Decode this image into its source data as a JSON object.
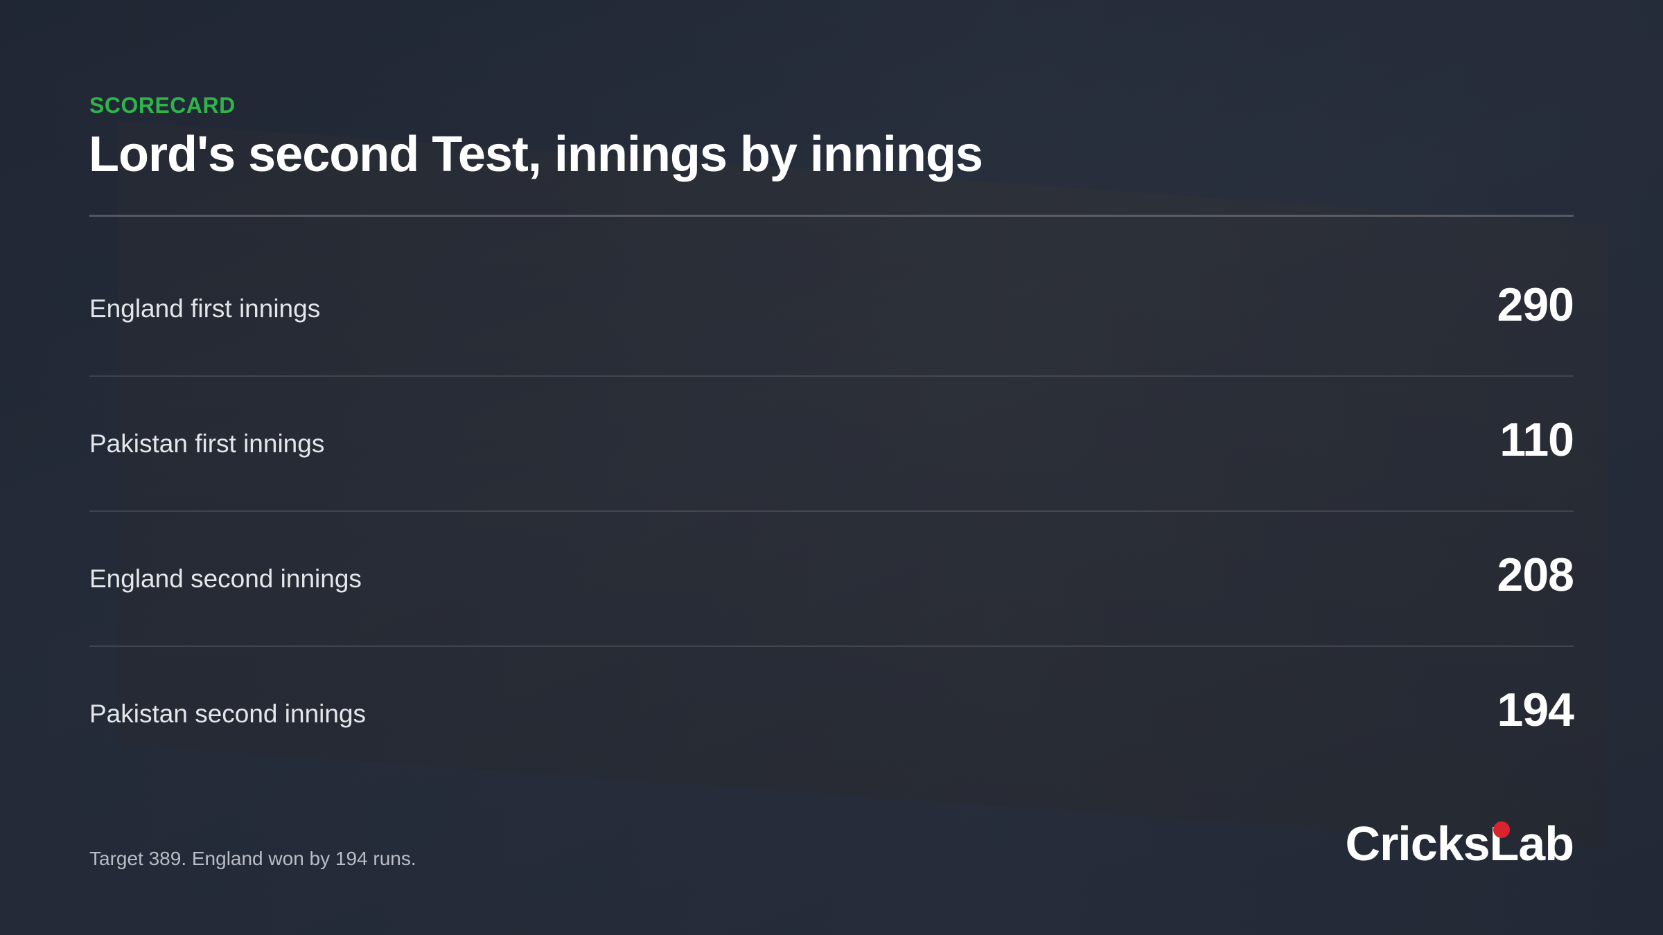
{
  "header": {
    "kicker": "SCORECARD",
    "title": "Lord's second Test, innings by innings"
  },
  "rows": [
    {
      "label": "England first innings",
      "value": 290
    },
    {
      "label": "Pakistan first innings",
      "value": 110
    },
    {
      "label": "England second innings",
      "value": 208
    },
    {
      "label": "Pakistan second innings",
      "value": 194
    }
  ],
  "footer": {
    "note": "Target 389. England won by 194 runs.",
    "brand": "CricksLab"
  }
}
